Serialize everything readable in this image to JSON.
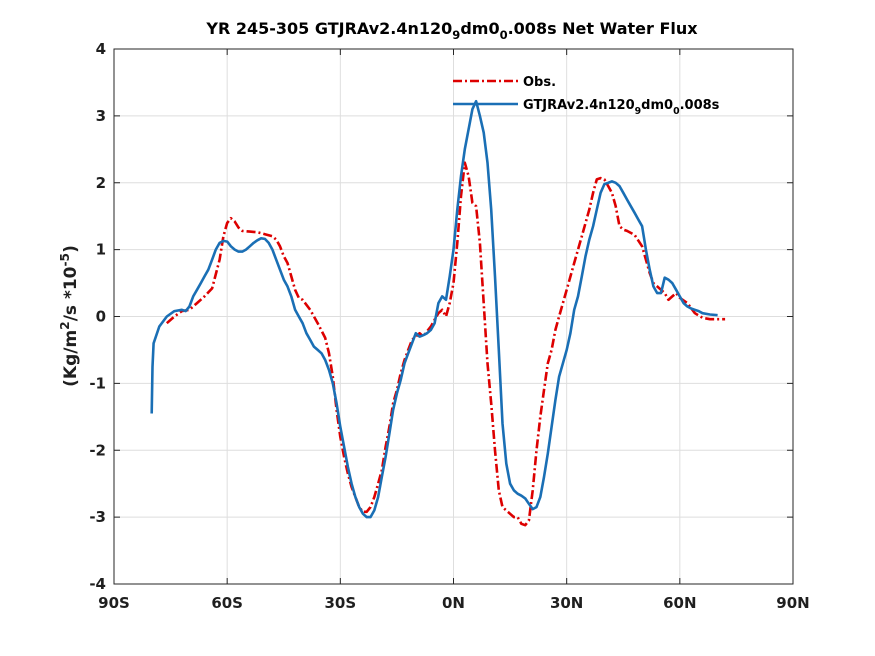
{
  "chart_data": {
    "type": "line",
    "title_parts": [
      {
        "text": "YR 245-305 GTJRAv2.4n120",
        "sub": false
      },
      {
        "text": "9",
        "sub": true
      },
      {
        "text": "dm0",
        "sub": false
      },
      {
        "text": "0",
        "sub": true
      },
      {
        "text": ".008s  Net Water Flux",
        "sub": false
      }
    ],
    "ylabel_parts": [
      {
        "text": "(Kg/m",
        "pos": "normal"
      },
      {
        "text": "2",
        "pos": "super"
      },
      {
        "text": "/s *10",
        "pos": "normal"
      },
      {
        "text": "-5",
        "pos": "super"
      },
      {
        "text": ")",
        "pos": "normal"
      }
    ],
    "xlim": [
      -90,
      90
    ],
    "ylim": [
      -4,
      4
    ],
    "xticks": [
      -90,
      -60,
      -30,
      0,
      30,
      60,
      90
    ],
    "xtick_labels": [
      "90S",
      "60S",
      "30S",
      "0N",
      "30N",
      "60N",
      "90N"
    ],
    "yticks": [
      -4,
      -3,
      -2,
      -1,
      0,
      1,
      2,
      3,
      4
    ],
    "ytick_labels": [
      "-4",
      "-3",
      "-2",
      "-1",
      "0",
      "1",
      "2",
      "3",
      "4"
    ],
    "grid": true,
    "legend_position": "top-right",
    "series": [
      {
        "name_parts": [
          {
            "text": "Obs.",
            "sub": false
          }
        ],
        "color": "#dd0000",
        "style": "dashdot",
        "points": [
          [
            -76,
            -0.1
          ],
          [
            -74,
            0.0
          ],
          [
            -72,
            0.08
          ],
          [
            -70,
            0.1
          ],
          [
            -68,
            0.2
          ],
          [
            -66,
            0.3
          ],
          [
            -64,
            0.42
          ],
          [
            -62,
            0.85
          ],
          [
            -61,
            1.2
          ],
          [
            -60,
            1.4
          ],
          [
            -59,
            1.47
          ],
          [
            -58,
            1.42
          ],
          [
            -57,
            1.33
          ],
          [
            -56,
            1.28
          ],
          [
            -54,
            1.27
          ],
          [
            -52,
            1.26
          ],
          [
            -50,
            1.23
          ],
          [
            -48,
            1.2
          ],
          [
            -47,
            1.15
          ],
          [
            -46,
            1.05
          ],
          [
            -45,
            0.9
          ],
          [
            -44,
            0.8
          ],
          [
            -43,
            0.6
          ],
          [
            -42,
            0.4
          ],
          [
            -41,
            0.28
          ],
          [
            -40,
            0.25
          ],
          [
            -38,
            0.1
          ],
          [
            -36,
            -0.1
          ],
          [
            -34,
            -0.32
          ],
          [
            -33,
            -0.55
          ],
          [
            -32,
            -0.9
          ],
          [
            -31,
            -1.4
          ],
          [
            -30,
            -1.8
          ],
          [
            -29,
            -2.1
          ],
          [
            -28,
            -2.35
          ],
          [
            -27,
            -2.55
          ],
          [
            -26,
            -2.7
          ],
          [
            -25,
            -2.85
          ],
          [
            -24,
            -2.92
          ],
          [
            -23,
            -2.92
          ],
          [
            -22,
            -2.85
          ],
          [
            -21,
            -2.7
          ],
          [
            -20,
            -2.5
          ],
          [
            -19,
            -2.3
          ],
          [
            -18,
            -1.95
          ],
          [
            -17,
            -1.65
          ],
          [
            -16,
            -1.3
          ],
          [
            -15,
            -1.1
          ],
          [
            -14,
            -0.85
          ],
          [
            -13,
            -0.65
          ],
          [
            -12,
            -0.5
          ],
          [
            -11,
            -0.35
          ],
          [
            -10,
            -0.3
          ],
          [
            -9,
            -0.25
          ],
          [
            -8,
            -0.3
          ],
          [
            -7,
            -0.22
          ],
          [
            -6,
            -0.15
          ],
          [
            -5,
            -0.05
          ],
          [
            -4,
            0.05
          ],
          [
            -3,
            0.1
          ],
          [
            -2,
            0.0
          ],
          [
            -1,
            0.2
          ],
          [
            0,
            0.5
          ],
          [
            1,
            1.1
          ],
          [
            2,
            1.8
          ],
          [
            3,
            2.3
          ],
          [
            4,
            2.1
          ],
          [
            5,
            1.7
          ],
          [
            6,
            1.65
          ],
          [
            7,
            1.1
          ],
          [
            8,
            0.2
          ],
          [
            9,
            -0.7
          ],
          [
            10,
            -1.3
          ],
          [
            11,
            -2.0
          ],
          [
            12,
            -2.6
          ],
          [
            13,
            -2.85
          ],
          [
            14,
            -2.9
          ],
          [
            15,
            -2.95
          ],
          [
            16,
            -3.0
          ],
          [
            17,
            -3.0
          ],
          [
            18,
            -3.1
          ],
          [
            19,
            -3.12
          ],
          [
            20,
            -3.05
          ],
          [
            21,
            -2.6
          ],
          [
            22,
            -2.0
          ],
          [
            23,
            -1.5
          ],
          [
            24,
            -1.1
          ],
          [
            25,
            -0.7
          ],
          [
            26,
            -0.5
          ],
          [
            27,
            -0.2
          ],
          [
            28,
            0.0
          ],
          [
            29,
            0.2
          ],
          [
            30,
            0.4
          ],
          [
            32,
            0.8
          ],
          [
            34,
            1.2
          ],
          [
            36,
            1.6
          ],
          [
            37,
            1.85
          ],
          [
            38,
            2.05
          ],
          [
            39,
            2.07
          ],
          [
            40,
            2.05
          ],
          [
            41,
            1.95
          ],
          [
            42,
            1.85
          ],
          [
            43,
            1.65
          ],
          [
            44,
            1.35
          ],
          [
            45,
            1.3
          ],
          [
            46,
            1.28
          ],
          [
            48,
            1.22
          ],
          [
            50,
            1.05
          ],
          [
            52,
            0.65
          ],
          [
            53,
            0.5
          ],
          [
            54,
            0.45
          ],
          [
            55,
            0.4
          ],
          [
            56,
            0.35
          ],
          [
            57,
            0.25
          ],
          [
            58,
            0.3
          ],
          [
            59,
            0.35
          ],
          [
            60,
            0.28
          ],
          [
            62,
            0.2
          ],
          [
            64,
            0.05
          ],
          [
            66,
            -0.02
          ],
          [
            68,
            -0.04
          ],
          [
            70,
            -0.04
          ],
          [
            72,
            -0.04
          ]
        ]
      },
      {
        "name_parts": [
          {
            "text": "GTJRAv2.4n120",
            "sub": false
          },
          {
            "text": "9",
            "sub": true
          },
          {
            "text": "dm0",
            "sub": false
          },
          {
            "text": "0",
            "sub": true
          },
          {
            "text": ".008s",
            "sub": false
          }
        ],
        "color": "#1a6fb5",
        "style": "solid",
        "points": [
          [
            -80,
            -1.45
          ],
          [
            -79.8,
            -0.75
          ],
          [
            -79.5,
            -0.4
          ],
          [
            -78,
            -0.15
          ],
          [
            -76,
            0.0
          ],
          [
            -74,
            0.08
          ],
          [
            -72,
            0.1
          ],
          [
            -71,
            0.08
          ],
          [
            -70,
            0.15
          ],
          [
            -69,
            0.3
          ],
          [
            -68,
            0.4
          ],
          [
            -67,
            0.5
          ],
          [
            -66,
            0.6
          ],
          [
            -65,
            0.7
          ],
          [
            -64,
            0.85
          ],
          [
            -63,
            1.0
          ],
          [
            -62,
            1.1
          ],
          [
            -61,
            1.13
          ],
          [
            -60,
            1.12
          ],
          [
            -59,
            1.05
          ],
          [
            -58,
            1.0
          ],
          [
            -57,
            0.97
          ],
          [
            -56,
            0.97
          ],
          [
            -55,
            1.0
          ],
          [
            -54,
            1.05
          ],
          [
            -53,
            1.1
          ],
          [
            -52,
            1.14
          ],
          [
            -51,
            1.17
          ],
          [
            -50,
            1.16
          ],
          [
            -49,
            1.1
          ],
          [
            -48,
            1.0
          ],
          [
            -47,
            0.85
          ],
          [
            -46,
            0.7
          ],
          [
            -45,
            0.55
          ],
          [
            -44,
            0.45
          ],
          [
            -43,
            0.3
          ],
          [
            -42,
            0.1
          ],
          [
            -41,
            0.0
          ],
          [
            -40,
            -0.1
          ],
          [
            -39,
            -0.25
          ],
          [
            -38,
            -0.35
          ],
          [
            -37,
            -0.45
          ],
          [
            -36,
            -0.5
          ],
          [
            -35,
            -0.55
          ],
          [
            -34,
            -0.65
          ],
          [
            -33,
            -0.8
          ],
          [
            -32,
            -1.0
          ],
          [
            -31,
            -1.3
          ],
          [
            -30,
            -1.65
          ],
          [
            -29,
            -1.95
          ],
          [
            -28,
            -2.25
          ],
          [
            -27,
            -2.5
          ],
          [
            -26,
            -2.7
          ],
          [
            -25,
            -2.85
          ],
          [
            -24,
            -2.95
          ],
          [
            -23,
            -3.0
          ],
          [
            -22,
            -3.0
          ],
          [
            -21,
            -2.9
          ],
          [
            -20,
            -2.7
          ],
          [
            -19,
            -2.4
          ],
          [
            -18,
            -2.1
          ],
          [
            -17,
            -1.75
          ],
          [
            -16,
            -1.4
          ],
          [
            -15,
            -1.15
          ],
          [
            -14,
            -0.95
          ],
          [
            -13,
            -0.7
          ],
          [
            -12,
            -0.55
          ],
          [
            -11,
            -0.4
          ],
          [
            -10,
            -0.25
          ],
          [
            -9,
            -0.3
          ],
          [
            -8,
            -0.28
          ],
          [
            -7,
            -0.25
          ],
          [
            -6,
            -0.2
          ],
          [
            -5,
            -0.1
          ],
          [
            -4,
            0.2
          ],
          [
            -3,
            0.3
          ],
          [
            -2,
            0.25
          ],
          [
            -1,
            0.6
          ],
          [
            0,
            1.0
          ],
          [
            1,
            1.6
          ],
          [
            2,
            2.1
          ],
          [
            3,
            2.5
          ],
          [
            4,
            2.8
          ],
          [
            5,
            3.1
          ],
          [
            6,
            3.22
          ],
          [
            7,
            3.0
          ],
          [
            8,
            2.75
          ],
          [
            9,
            2.3
          ],
          [
            10,
            1.6
          ],
          [
            11,
            0.6
          ],
          [
            12,
            -0.5
          ],
          [
            13,
            -1.6
          ],
          [
            14,
            -2.2
          ],
          [
            15,
            -2.5
          ],
          [
            16,
            -2.6
          ],
          [
            17,
            -2.65
          ],
          [
            18,
            -2.68
          ],
          [
            19,
            -2.72
          ],
          [
            20,
            -2.8
          ],
          [
            21,
            -2.88
          ],
          [
            22,
            -2.85
          ],
          [
            23,
            -2.7
          ],
          [
            24,
            -2.4
          ],
          [
            25,
            -2.05
          ],
          [
            26,
            -1.65
          ],
          [
            27,
            -1.25
          ],
          [
            28,
            -0.9
          ],
          [
            29,
            -0.7
          ],
          [
            30,
            -0.5
          ],
          [
            31,
            -0.25
          ],
          [
            32,
            0.1
          ],
          [
            33,
            0.3
          ],
          [
            34,
            0.6
          ],
          [
            35,
            0.9
          ],
          [
            36,
            1.15
          ],
          [
            37,
            1.35
          ],
          [
            38,
            1.6
          ],
          [
            39,
            1.85
          ],
          [
            40,
            1.98
          ],
          [
            41,
            2.0
          ],
          [
            42,
            2.02
          ],
          [
            43,
            2.0
          ],
          [
            44,
            1.95
          ],
          [
            45,
            1.85
          ],
          [
            46,
            1.75
          ],
          [
            47,
            1.65
          ],
          [
            48,
            1.55
          ],
          [
            49,
            1.45
          ],
          [
            50,
            1.35
          ],
          [
            51,
            1.0
          ],
          [
            52,
            0.7
          ],
          [
            53,
            0.45
          ],
          [
            54,
            0.35
          ],
          [
            55,
            0.35
          ],
          [
            56,
            0.58
          ],
          [
            57,
            0.55
          ],
          [
            58,
            0.5
          ],
          [
            59,
            0.4
          ],
          [
            60,
            0.3
          ],
          [
            61,
            0.2
          ],
          [
            62,
            0.15
          ],
          [
            63,
            0.12
          ],
          [
            64,
            0.1
          ],
          [
            65,
            0.08
          ],
          [
            66,
            0.05
          ],
          [
            68,
            0.03
          ],
          [
            70,
            0.02
          ]
        ]
      }
    ]
  }
}
